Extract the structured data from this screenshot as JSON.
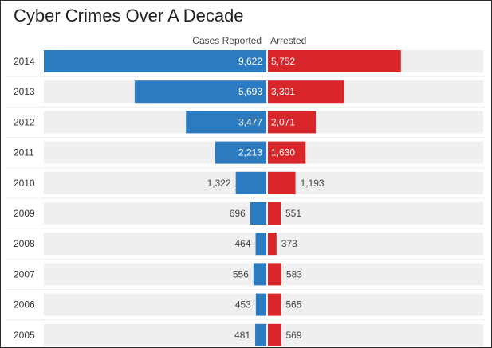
{
  "title": "Cyber Crimes Over A Decade",
  "chart_data": {
    "type": "bar",
    "orientation": "horizontal-diverging",
    "title": "Cyber Crimes Over A Decade",
    "categories": [
      "2014",
      "2013",
      "2012",
      "2011",
      "2010",
      "2009",
      "2008",
      "2007",
      "2006",
      "2005"
    ],
    "series": [
      {
        "name": "Cases Reported",
        "color": "#2c7bc1",
        "direction": "left",
        "values": [
          9622,
          5693,
          3477,
          2213,
          1322,
          696,
          464,
          556,
          453,
          481
        ],
        "labels": [
          "9,622",
          "5,693",
          "3,477",
          "2,213",
          "1,322",
          "696",
          "464",
          "556",
          "453",
          "481"
        ]
      },
      {
        "name": "Arrested",
        "color": "#d9262b",
        "direction": "right",
        "values": [
          5752,
          3301,
          2071,
          1630,
          1193,
          551,
          373,
          583,
          565,
          569
        ],
        "labels": [
          "5,752",
          "3,301",
          "2,071",
          "1,630",
          "1,193",
          "551",
          "373",
          "583",
          "565",
          "569"
        ]
      }
    ],
    "track_color": "#efefef",
    "label_inside_color": "#ffffff",
    "label_outside_color": "#444444",
    "legend": "top-center",
    "grid": false
  }
}
